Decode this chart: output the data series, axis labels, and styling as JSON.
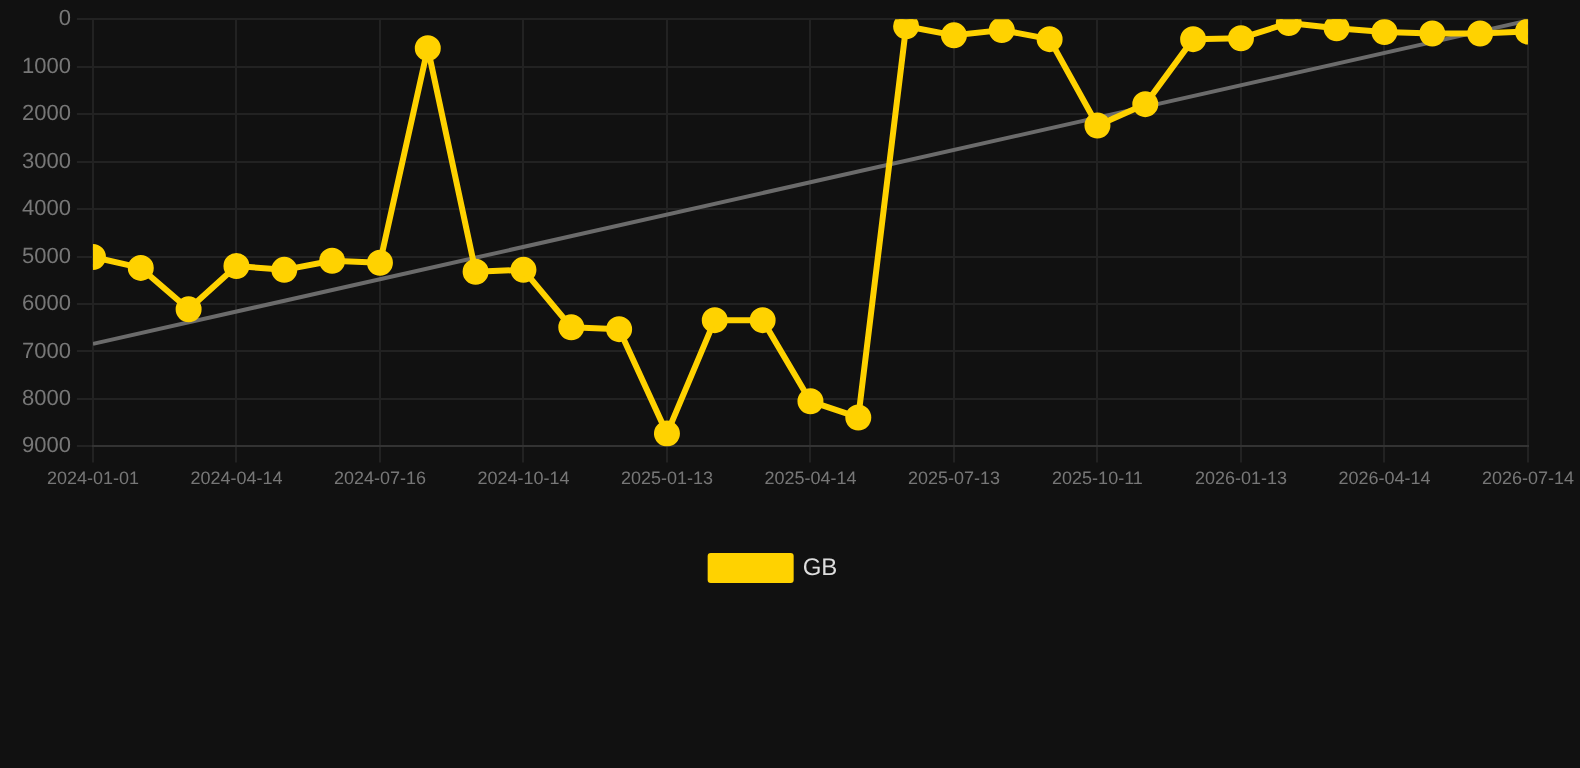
{
  "chart_data": {
    "type": "line",
    "categories": [
      "2024-01-01",
      null,
      null,
      "2024-04-14",
      null,
      null,
      "2024-07-16",
      null,
      null,
      "2024-10-14",
      null,
      null,
      "2025-01-13",
      null,
      null,
      "2025-04-14",
      null,
      null,
      "2025-07-13",
      null,
      null,
      "2025-10-11",
      null,
      null,
      "2026-01-13",
      null,
      null,
      "2026-04-14",
      null,
      null,
      "2026-07-14"
    ],
    "series": [
      {
        "name": "GB",
        "color": "#ffd200",
        "marker": "circle",
        "values": [
          5010,
          5240,
          6110,
          5200,
          5280,
          5090,
          5130,
          610,
          5320,
          5280,
          6490,
          6530,
          8730,
          6340,
          6340,
          8050,
          8390,
          150,
          340,
          230,
          420,
          2240,
          1790,
          420,
          400,
          80,
          190,
          270,
          300,
          300,
          260
        ]
      },
      {
        "type": "line",
        "color": "#6b6b6b",
        "marker": "none",
        "values": [
          6840,
          null,
          null,
          null,
          null,
          null,
          null,
          null,
          null,
          null,
          null,
          null,
          null,
          null,
          null,
          null,
          null,
          null,
          null,
          null,
          null,
          null,
          null,
          null,
          null,
          null,
          null,
          null,
          null,
          null,
          30
        ]
      }
    ],
    "ylim": [
      9000,
      0
    ],
    "yticks": [
      0,
      1000,
      2000,
      3000,
      4000,
      5000,
      6000,
      7000,
      8000,
      9000
    ],
    "grid": true,
    "legend": "bottom",
    "line_style": "solid"
  }
}
